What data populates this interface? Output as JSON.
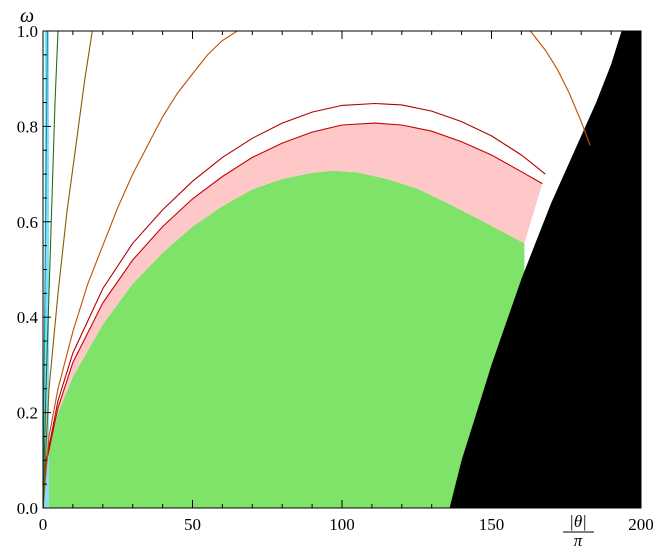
{
  "chart_data": {
    "type": "area",
    "title": "",
    "xlabel": "|θ|",
    "xlabel_denominator": "π",
    "ylabel": "ω",
    "xlim": [
      0,
      200
    ],
    "ylim": [
      0,
      1.0
    ],
    "x_ticks": [
      "0",
      "50",
      "100",
      "150",
      "200"
    ],
    "y_ticks": [
      "0.0",
      "0.2",
      "0.4",
      "0.6",
      "0.8",
      "1.0"
    ],
    "grid": false,
    "legend": "none",
    "series": [
      {
        "kind": "filled",
        "color": "#7fe36a",
        "x": [
          0,
          1,
          5,
          10,
          20,
          30,
          40,
          50,
          60,
          70,
          80,
          90,
          97,
          105,
          115,
          125,
          135,
          145,
          155,
          161
        ],
        "y": [
          0,
          0.092,
          0.2,
          0.275,
          0.385,
          0.47,
          0.535,
          0.59,
          0.633,
          0.668,
          0.69,
          0.703,
          0.707,
          0.704,
          0.69,
          0.67,
          0.64,
          0.608,
          0.575,
          0.555
        ]
      },
      {
        "kind": "filled-band",
        "color": "#ffc8c8",
        "x": [
          0,
          1,
          5,
          10,
          20,
          30,
          40,
          50,
          60,
          70,
          80,
          90,
          100,
          111,
          120,
          130,
          140,
          150,
          160,
          167
        ],
        "y": [
          0,
          0.092,
          0.21,
          0.305,
          0.43,
          0.52,
          0.59,
          0.648,
          0.695,
          0.735,
          0.765,
          0.788,
          0.803,
          0.807,
          0.803,
          0.79,
          0.768,
          0.74,
          0.705,
          0.68
        ]
      },
      {
        "kind": "line",
        "color": "#cc0000",
        "x": [
          0,
          1,
          5,
          10,
          20,
          30,
          40,
          50,
          60,
          70,
          80,
          90,
          100,
          111,
          120,
          130,
          140,
          150,
          160,
          167
        ],
        "y": [
          0,
          0.092,
          0.21,
          0.305,
          0.43,
          0.52,
          0.59,
          0.648,
          0.695,
          0.735,
          0.765,
          0.788,
          0.803,
          0.807,
          0.803,
          0.79,
          0.768,
          0.74,
          0.705,
          0.68
        ]
      },
      {
        "kind": "line",
        "color": "#b00000",
        "x": [
          0,
          1,
          5,
          10,
          20,
          30,
          40,
          50,
          60,
          70,
          80,
          90,
          100,
          111,
          120,
          130,
          140,
          150,
          160,
          168
        ],
        "y": [
          0,
          0.097,
          0.225,
          0.325,
          0.46,
          0.555,
          0.625,
          0.685,
          0.735,
          0.775,
          0.807,
          0.83,
          0.844,
          0.848,
          0.845,
          0.832,
          0.81,
          0.78,
          0.74,
          0.7
        ]
      },
      {
        "kind": "line",
        "color": "#c05000",
        "x": [
          0,
          2,
          5,
          10,
          15,
          20,
          25,
          30,
          35,
          40,
          45,
          50,
          55,
          60,
          65
        ],
        "y": [
          0,
          0.15,
          0.25,
          0.37,
          0.47,
          0.55,
          0.63,
          0.7,
          0.76,
          0.82,
          0.87,
          0.91,
          0.95,
          0.98,
          1.0
        ]
      },
      {
        "kind": "line",
        "color": "#c05000",
        "x": [
          163,
          168,
          172,
          176,
          180,
          183
        ],
        "y": [
          1.0,
          0.96,
          0.92,
          0.87,
          0.81,
          0.76
        ]
      },
      {
        "kind": "line",
        "color": "#806000",
        "x": [
          0,
          2,
          5,
          8,
          11,
          14,
          16.5
        ],
        "y": [
          0,
          0.25,
          0.45,
          0.62,
          0.76,
          0.9,
          1.0
        ]
      },
      {
        "kind": "line",
        "color": "#207020",
        "x": [
          0,
          1,
          2,
          3,
          4,
          5
        ],
        "y": [
          0,
          0.25,
          0.45,
          0.65,
          0.85,
          1.0
        ]
      },
      {
        "kind": "line",
        "color": "#00a0a0",
        "x": [
          0,
          0.5,
          1.0,
          1.5
        ],
        "y": [
          0,
          0.35,
          0.7,
          1.0
        ]
      },
      {
        "kind": "band",
        "color": "#88ddff",
        "x": [
          0.6,
          2.0
        ],
        "y": [
          0,
          1.0
        ]
      },
      {
        "kind": "filled-region-right",
        "color": "#000000",
        "x": [
          136,
          140,
          145,
          150,
          155,
          160,
          165,
          170,
          175,
          180,
          185,
          190,
          193.5
        ],
        "y": [
          0,
          0.1,
          0.2,
          0.3,
          0.39,
          0.48,
          0.56,
          0.64,
          0.71,
          0.78,
          0.85,
          0.93,
          1.0
        ]
      }
    ]
  }
}
